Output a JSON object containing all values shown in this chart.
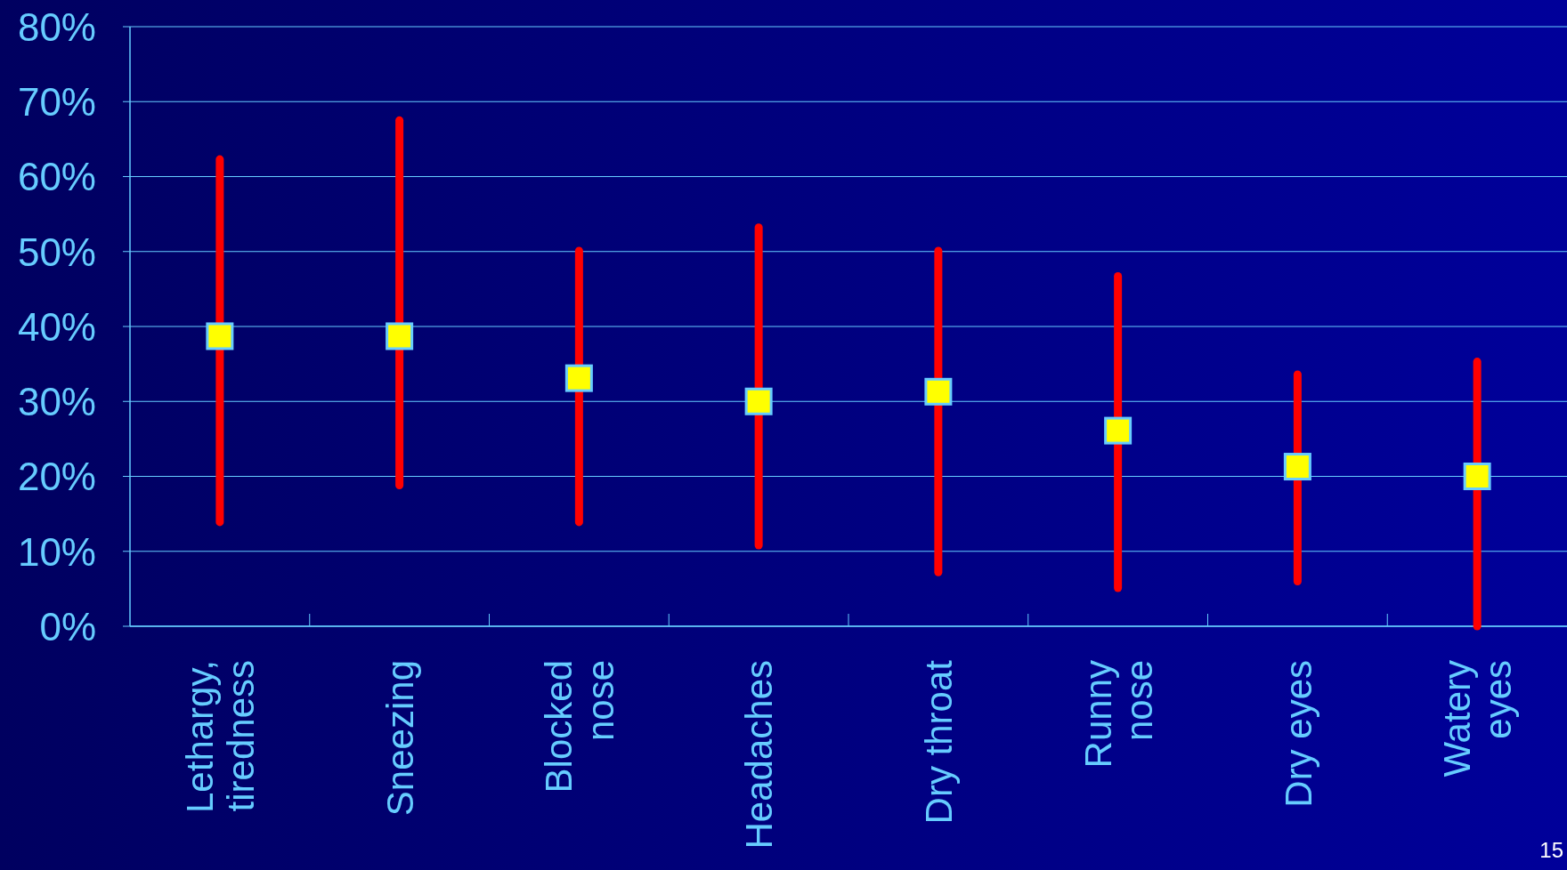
{
  "chart_data": {
    "type": "scatter",
    "categories": [
      "Lethargy,\ntiredness",
      "Sneezing",
      "Blocked\nnose",
      "Headaches",
      "Dry throat",
      "Runny\nnose",
      "Dry eyes",
      "Watery\neyes"
    ],
    "series": [
      {
        "color": "#ffff00",
        "values": [
          38.7,
          38.7,
          33.1,
          30,
          31.3,
          26.1,
          21.3,
          20
        ],
        "errors": [
          [
            13.9,
            62.3
          ],
          [
            18.8,
            67.5
          ],
          [
            13.9,
            50.1
          ],
          [
            10.8,
            53.2
          ],
          [
            7.2,
            50.1
          ],
          [
            5.1,
            46.7
          ],
          [
            6,
            33.6
          ],
          [
            0,
            35.3
          ]
        ]
      }
    ],
    "ylim": [
      0,
      80
    ],
    "yticks": [
      {
        "value": 0,
        "label": "0%"
      },
      {
        "value": 10,
        "label": "10%"
      },
      {
        "value": 20,
        "label": "20%"
      },
      {
        "value": 30,
        "label": "30%"
      },
      {
        "value": 40,
        "label": "40%"
      },
      {
        "value": 50,
        "label": "50%"
      },
      {
        "value": 60,
        "label": "60%"
      },
      {
        "value": 70,
        "label": "70%"
      },
      {
        "value": 80,
        "label": "80%"
      }
    ],
    "grid": "y",
    "marker": "square",
    "annotations": [
      "15"
    ]
  }
}
